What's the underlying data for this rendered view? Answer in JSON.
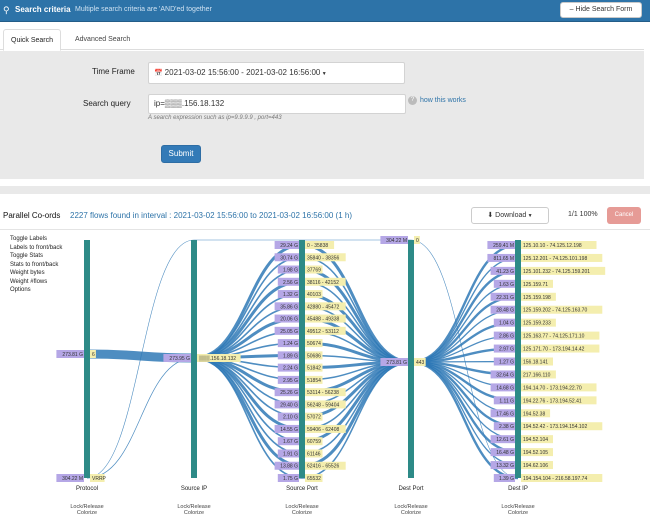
{
  "header": {
    "title": "Search criteria",
    "subtitle": "Multiple search criteria are 'AND'ed together",
    "hide_button": "Hide Search Form"
  },
  "tabs": [
    "Quick Search",
    "Advanced Search"
  ],
  "form": {
    "time_label": "Time Frame",
    "time_value": "2021-03-02 15:56:00 - 2021-03-02 16:56:00",
    "query_label": "Search query",
    "query_value": "ip=▒▒▒.156.18.132",
    "help_text": "A search expression such as ip=9.9.9.9 , port=443",
    "how_link": "how this works",
    "submit": "Submit"
  },
  "results": {
    "title": "Parallel Co-ords",
    "summary": "2227 flows found in interval : 2021-03-02 15:56:00 to 2021-03-02 16:56:00 (1 h)",
    "download": "Download",
    "pager": "1/1 100%",
    "cancel": "Cancel"
  },
  "options": [
    "Toggle Labels",
    "Labels to front/back",
    "Toggle Stats",
    "Stats to front/back",
    "Weight bytes",
    "Weight #flows",
    "Options"
  ],
  "axes": [
    {
      "name": "Protocol",
      "lock": "Lock/Release",
      "color": "Colorize",
      "ticks": [
        {
          "stat": "273.81 G",
          "label": "6"
        },
        {
          "stat": "304.22 M",
          "label": "VRRP"
        }
      ]
    },
    {
      "name": "Source IP",
      "lock": "Lock/Release",
      "color": "Colorize",
      "ticks": [
        {
          "stat": "273.95 G",
          "label": "▒▒▒.156.18.132"
        }
      ]
    },
    {
      "name": "Source Port",
      "lock": "Lock/Release",
      "color": "Colorize",
      "ticks": [
        {
          "stat": "29.24 G",
          "label": "0 - 35838"
        },
        {
          "stat": "30.74 G",
          "label": "35840 - 38356"
        },
        {
          "stat": "1.98 G",
          "label": "37769"
        },
        {
          "stat": "2.56 G",
          "label": "38116 - 42152"
        },
        {
          "stat": "1.32 G",
          "label": "40103"
        },
        {
          "stat": "35.86 G",
          "label": "42880 - 45472"
        },
        {
          "stat": "20.06 G",
          "label": "45488 - 49338"
        },
        {
          "stat": "25.05 G",
          "label": "49512 - 53112"
        },
        {
          "stat": "1.24 G",
          "label": "50674"
        },
        {
          "stat": "1.89 G",
          "label": "50686"
        },
        {
          "stat": "2.24 G",
          "label": "51842"
        },
        {
          "stat": "2.95 G",
          "label": "51854"
        },
        {
          "stat": "25.26 G",
          "label": "53114 - 56238"
        },
        {
          "stat": "29.40 G",
          "label": "56248 - 59404"
        },
        {
          "stat": "2.10 G",
          "label": "57072"
        },
        {
          "stat": "14.55 G",
          "label": "59406 - 62408"
        },
        {
          "stat": "1.67 G",
          "label": "60759"
        },
        {
          "stat": "1.91 G",
          "label": "61146"
        },
        {
          "stat": "13.88 G",
          "label": "62416 - 65526"
        },
        {
          "stat": "1.75 G",
          "label": "65532"
        }
      ]
    },
    {
      "name": "Dest Port",
      "lock": "Lock/Release",
      "color": "Colorize",
      "ticks": [
        {
          "stat": "304.22 M",
          "label": "0"
        },
        {
          "stat": "273.81 G",
          "label": "443"
        }
      ]
    },
    {
      "name": "Dest IP",
      "lock": "Lock/Release",
      "color": "Colorize",
      "ticks": [
        {
          "stat": "259.41 M",
          "label": "125.10.10 - 74.125.12.198"
        },
        {
          "stat": "811.65 M",
          "label": "125.12.201 - 74.125.101.198"
        },
        {
          "stat": "41.23 G",
          "label": "125.101.232 - 74.125.159.201"
        },
        {
          "stat": "1.63 G",
          "label": "125.159.71"
        },
        {
          "stat": "22.31 G",
          "label": "125.159.198"
        },
        {
          "stat": "28.48 G",
          "label": "125.159.202 - 74.125.163.70"
        },
        {
          "stat": "1.04 G",
          "label": "125.159.233"
        },
        {
          "stat": "2.86 G",
          "label": "125.163.77 - 74.125.171.10"
        },
        {
          "stat": "2.97 G",
          "label": "125.171.70 - 173.194.14.42"
        },
        {
          "stat": "1.27 G",
          "label": "156.18.141"
        },
        {
          "stat": "32.64 G",
          "label": "217.166.110"
        },
        {
          "stat": "14.68 G",
          "label": "194.14.70 - 173.194.22.70"
        },
        {
          "stat": "1.11 G",
          "label": "194.22.76 - 173.194.52.41"
        },
        {
          "stat": "17.46 G",
          "label": "194.52.38"
        },
        {
          "stat": "2.38 G",
          "label": "194.52.42 - 173.194.154.102"
        },
        {
          "stat": "12.61 G",
          "label": "194.52.104"
        },
        {
          "stat": "16.48 G",
          "label": "194.52.105"
        },
        {
          "stat": "13.32 G",
          "label": "194.62.106"
        },
        {
          "stat": "1.39 G",
          "label": "194.154.104 - 216.58.197.74"
        }
      ]
    }
  ],
  "colors": {
    "header_bg": "#2d73a8",
    "axis": "#2d8a87",
    "flow": "#2f79b6",
    "stat_bg": "#b5a7e6",
    "label_bg": "#f4eeae",
    "cancel": "#e69b96"
  }
}
